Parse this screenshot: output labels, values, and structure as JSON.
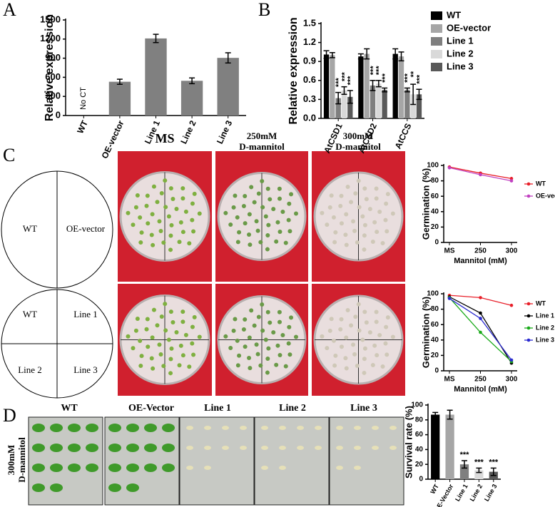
{
  "panel_labels": [
    "A",
    "B",
    "C",
    "D"
  ],
  "plate_headers": [
    [
      "MS"
    ],
    [
      "250mM",
      "D-mannitol"
    ],
    [
      "300mM",
      "D-mannitol"
    ]
  ],
  "diagram": {
    "top": [
      "WT",
      "OE-vector"
    ],
    "bottom": [
      "WT",
      "Line 1",
      "Line 2",
      "Line 3"
    ]
  },
  "seedling_headers": [
    "WT",
    "OE-Vector",
    "Line 1",
    "Line 2",
    "Line 3"
  ],
  "row_label": [
    "300mM",
    "D-mannitol"
  ],
  "chart_data": [
    {
      "type": "bar",
      "ylabel": "Relative expression",
      "categories": [
        "WT",
        "OE-vector",
        "Line 1",
        "Line 2",
        "Line 3"
      ],
      "values": [
        null,
        530,
        1210,
        545,
        905
      ],
      "errors": [
        null,
        40,
        65,
        45,
        80
      ],
      "na_label": "No CT",
      "color": "#808080",
      "ylim": [
        0,
        1500
      ],
      "yticks": [
        0,
        300,
        600,
        900,
        1200,
        1500
      ]
    },
    {
      "type": "bar",
      "ylabel": "Relative expression",
      "categories": [
        "AtCSD1",
        "AtCSD2",
        "AtCCS"
      ],
      "series": [
        {
          "name": "WT",
          "color": "#000000",
          "values": [
            1.01,
            0.98,
            1.02
          ],
          "errors": [
            0.06,
            0.04,
            0.08
          ]
        },
        {
          "name": "OE-vector",
          "color": "#a6a6a6",
          "values": [
            1.0,
            1.02,
            0.98
          ],
          "errors": [
            0.04,
            0.08,
            0.07
          ]
        },
        {
          "name": "Line 1",
          "color": "#7f7f7f",
          "values": [
            0.32,
            0.52,
            0.45
          ],
          "errors": [
            0.09,
            0.08,
            0.03
          ],
          "significance": [
            "***",
            "***",
            "***"
          ]
        },
        {
          "name": "Line 2",
          "color": "#d9d9d9",
          "values": [
            0.44,
            0.55,
            0.38
          ],
          "errors": [
            0.06,
            0.05,
            0.16
          ],
          "significance": [
            "***",
            "***",
            "**"
          ]
        },
        {
          "name": "Line 3",
          "color": "#595959",
          "values": [
            0.34,
            0.45,
            0.38
          ],
          "errors": [
            0.1,
            0.03,
            0.08
          ],
          "significance": [
            "***",
            "***",
            "***"
          ]
        }
      ],
      "ylim": [
        0,
        1.5
      ],
      "yticks": [
        {
          "value": 0,
          "label": "0.0"
        },
        0.3,
        0.6,
        0.9,
        1.2,
        1.5
      ]
    },
    {
      "type": "line",
      "ylabel": "Germination (%)",
      "xlabel": "Mannitol (mM)",
      "categories": [
        "MS",
        "250",
        "300"
      ],
      "series": [
        {
          "name": "WT",
          "color": "#e8202a",
          "values": [
            98,
            90,
            83
          ]
        },
        {
          "name": "OE-vector",
          "color": "#c040c0",
          "values": [
            97,
            88,
            80
          ]
        }
      ],
      "ylim": [
        0,
        100
      ],
      "yticks": [
        0,
        20,
        40,
        60,
        80,
        100
      ]
    },
    {
      "type": "line",
      "ylabel": "Germination (%)",
      "xlabel": "Mannitol (mM)",
      "categories": [
        "MS",
        "250",
        "300"
      ],
      "series": [
        {
          "name": "WT",
          "color": "#e8202a",
          "values": [
            98,
            95,
            85
          ]
        },
        {
          "name": "Line 1",
          "color": "#000000",
          "values": [
            96,
            75,
            10
          ]
        },
        {
          "name": "Line 2",
          "color": "#1aaa1a",
          "values": [
            95,
            50,
            12
          ]
        },
        {
          "name": "Line 3",
          "color": "#2a2ad0",
          "values": [
            94,
            68,
            14
          ]
        }
      ],
      "ylim": [
        0,
        100
      ],
      "yticks": [
        0,
        20,
        40,
        60,
        80,
        100
      ]
    },
    {
      "type": "bar",
      "ylabel": "Survival rate (%)",
      "categories": [
        "WT",
        "OE-Vector",
        "Line 1",
        "Line 2",
        "Line 3"
      ],
      "values": [
        87,
        87,
        20,
        12,
        10
      ],
      "errors": [
        3,
        6,
        5,
        3,
        5
      ],
      "significance": [
        null,
        null,
        "***",
        "***",
        "***"
      ],
      "colors": [
        "#000000",
        "#a6a6a6",
        "#7f7f7f",
        "#d9d9d9",
        "#595959"
      ],
      "ylim": [
        0,
        100
      ],
      "yticks": [
        0,
        20,
        40,
        60,
        80,
        100
      ]
    }
  ]
}
